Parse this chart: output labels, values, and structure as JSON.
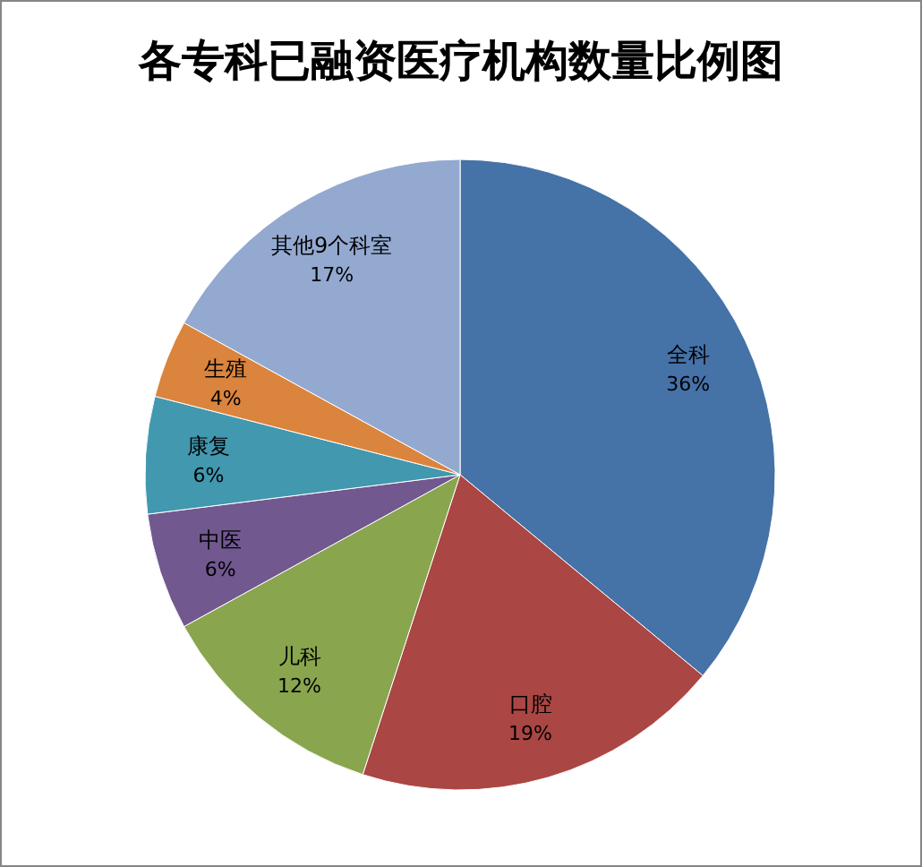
{
  "chart_data": {
    "type": "pie",
    "title": "各专科已融资医疗机构数量比例图",
    "categories": [
      "全科",
      "口腔",
      "儿科",
      "中医",
      "康复",
      "生殖",
      "其他9个科室"
    ],
    "values": [
      36,
      19,
      12,
      6,
      6,
      4,
      17
    ],
    "colors": [
      "#4572a7",
      "#aa4643",
      "#89a54e",
      "#71588f",
      "#4198af",
      "#db843d",
      "#93a9d0"
    ],
    "value_labels": [
      "36%",
      "19%",
      "12%",
      "6%",
      "6%",
      "4%",
      "17%"
    ]
  }
}
